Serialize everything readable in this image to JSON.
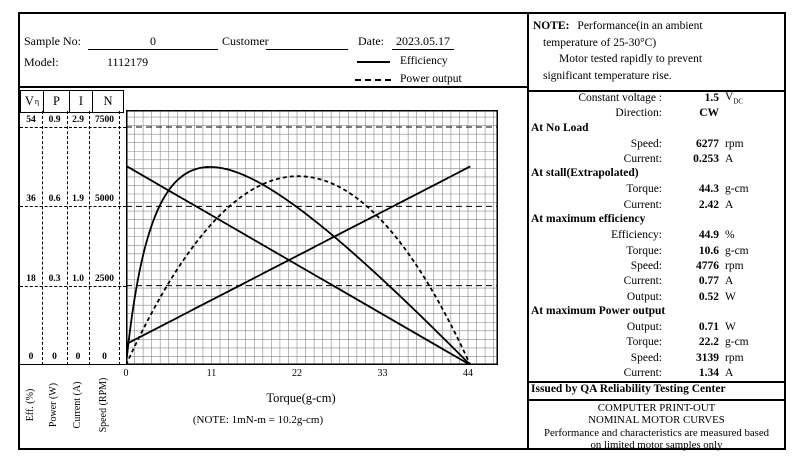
{
  "colors": {
    "ink": "#000000",
    "grid": "#8a8a8a",
    "background": "#ffffff"
  },
  "header": {
    "sample_no_label": "Sample No:",
    "sample_no_value": "0",
    "customer_label": "Customer",
    "customer_value": "",
    "date_label": "Date:",
    "date_value": "2023.05.17",
    "model_label": "Model:",
    "model_value": "1112179",
    "legend": [
      {
        "style": "solid",
        "label": "Efficiency"
      },
      {
        "style": "dashed",
        "label": "Power output"
      }
    ]
  },
  "note_box": {
    "title": "NOTE:",
    "lines": [
      "Performance(in an ambient",
      "temperature of 25-30°C)",
      "Motor tested rapidly to prevent",
      "significant temperature rise."
    ]
  },
  "right_panel": {
    "rows": [
      {
        "type": "row",
        "label": "Constant voltage :",
        "value": "1.5",
        "unit": "V",
        "unit_sub": "DC"
      },
      {
        "type": "row",
        "label": "Direction:",
        "value": "CW",
        "unit": ""
      },
      {
        "type": "section",
        "label": "At No Load"
      },
      {
        "type": "row",
        "label": "Speed:",
        "value": "6277",
        "unit": "rpm"
      },
      {
        "type": "row",
        "label": "Current:",
        "value": "0.253",
        "unit": "A"
      },
      {
        "type": "section",
        "label": "At stall(Extrapolated)"
      },
      {
        "type": "row",
        "label": "Torque:",
        "value": "44.3",
        "unit": "g-cm"
      },
      {
        "type": "row",
        "label": "Current:",
        "value": "2.42",
        "unit": "A"
      },
      {
        "type": "section",
        "label": "At maximum efficiency"
      },
      {
        "type": "row",
        "label": "Efficiency:",
        "value": "44.9",
        "unit": "%"
      },
      {
        "type": "row",
        "label": "Torque:",
        "value": "10.6",
        "unit": "g-cm"
      },
      {
        "type": "row",
        "label": "Speed:",
        "value": "4776",
        "unit": "rpm"
      },
      {
        "type": "row",
        "label": "Current:",
        "value": "0.77",
        "unit": "A"
      },
      {
        "type": "row",
        "label": "Output:",
        "value": "0.52",
        "unit": "W"
      },
      {
        "type": "section",
        "label": "At maximum Power output"
      },
      {
        "type": "row",
        "label": "Output:",
        "value": "0.71",
        "unit": "W"
      },
      {
        "type": "row",
        "label": "Torque:",
        "value": "22.2",
        "unit": "g-cm"
      },
      {
        "type": "row",
        "label": "Speed:",
        "value": "3139",
        "unit": "rpm"
      },
      {
        "type": "row",
        "label": "Current:",
        "value": "1.34",
        "unit": "A"
      }
    ],
    "issued_by": "Issued by QA Reliability Testing Center",
    "footer_lines": [
      "COMPUTER PRINT-OUT",
      "NOMINAL MOTOR CURVES",
      "Performance and characteristics are measured based",
      "on limited motor samples only"
    ]
  },
  "chart_data": {
    "type": "line",
    "title": "Nominal motor curves",
    "xlabel": "Torque(g-cm)",
    "x_note": "(NOTE:  1mN-m = 10.2g-cm)",
    "x_ticks": [
      "0",
      "11",
      "22",
      "33",
      "44"
    ],
    "x_tick_values": [
      0,
      11,
      22,
      33,
      44
    ],
    "grid": true,
    "left_axes": [
      {
        "name": "Efficiency",
        "header": "V",
        "header_sup": "η",
        "unit_label": "Eff. (%)",
        "tick_values": [
          "54",
          "36",
          "18",
          "0"
        ],
        "scale_top": 54
      },
      {
        "name": "Power",
        "header": "P",
        "header_sup": "",
        "unit_label": "Power (W)",
        "tick_values": [
          "0.9",
          "0.6",
          "0.3",
          "0"
        ],
        "scale_top": 0.9
      },
      {
        "name": "Current",
        "header": "I",
        "header_sup": "",
        "unit_label": "Current (A)",
        "tick_values": [
          "2.9",
          "1.9",
          "1.0",
          "0"
        ],
        "scale_top": 2.9
      },
      {
        "name": "Speed",
        "header": "N",
        "header_sup": "",
        "unit_label": "Speed (RPM)",
        "tick_values": [
          "7500",
          "5000",
          "2500",
          "0"
        ],
        "scale_top": 7500
      }
    ],
    "series": [
      {
        "name": "Speed",
        "axis": "Speed",
        "style": "solid",
        "shape": "line",
        "points": [
          [
            0,
            6277
          ],
          [
            44.3,
            0
          ]
        ]
      },
      {
        "name": "Current",
        "axis": "Current",
        "style": "solid",
        "shape": "line",
        "points": [
          [
            0,
            0.253
          ],
          [
            44.3,
            2.42
          ]
        ]
      },
      {
        "name": "Power output",
        "axis": "Power",
        "style": "dashed",
        "shape": "curve",
        "peak": [
          22.2,
          0.71
        ],
        "zeros": [
          0,
          44.3
        ]
      },
      {
        "name": "Efficiency",
        "axis": "Efficiency",
        "style": "solid",
        "shape": "curve",
        "peak": [
          10.6,
          44.9
        ],
        "zeros": [
          0,
          44.3
        ]
      }
    ],
    "motor": {
      "voltage_vdc": 1.5,
      "no_load_speed_rpm": 6277,
      "no_load_current_a": 0.253,
      "stall_torque_gcm": 44.3,
      "stall_current_a": 2.42
    }
  }
}
